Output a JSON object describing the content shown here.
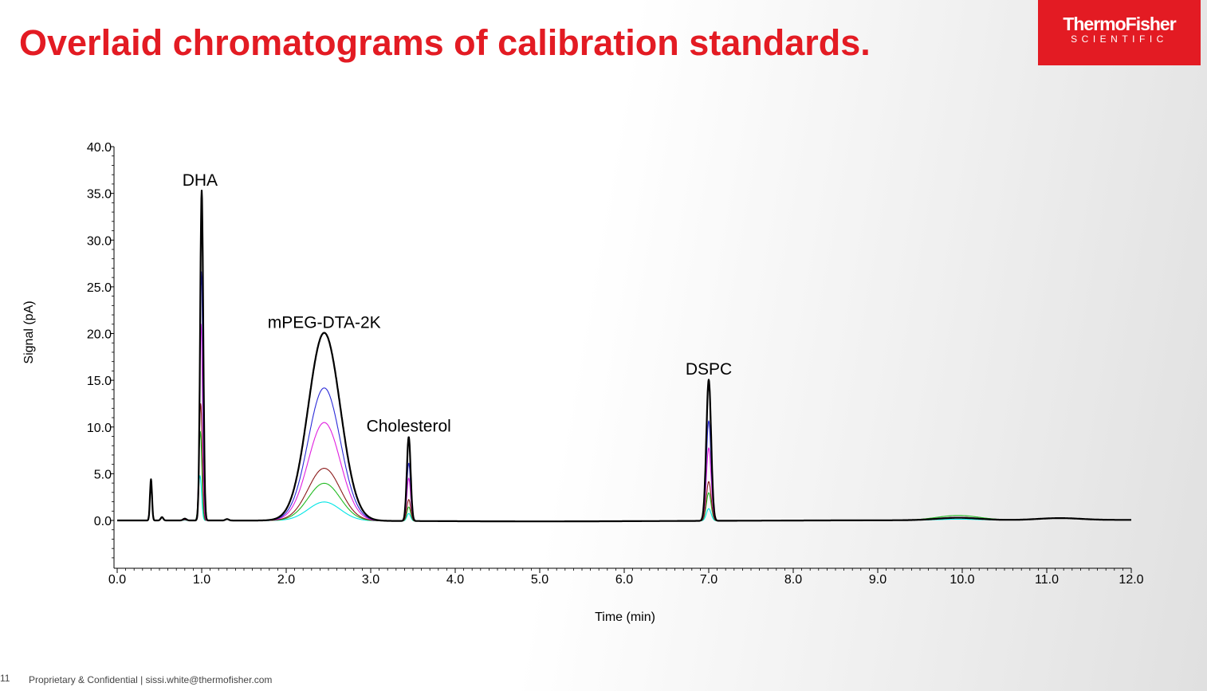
{
  "slide": {
    "title": "Overlaid chromatograms of calibration standards.",
    "page_number": "11",
    "footer": "Proprietary & Confidential |  sissi.white@thermofisher.com",
    "title_color": "#e31b23"
  },
  "logo": {
    "line1": "ThermoFisher",
    "line2": "SCIENTIFIC",
    "color": "#e31b23"
  },
  "chart_data": {
    "type": "line",
    "xlabel": "Time (min)",
    "ylabel": "Signal (pA)",
    "xlim": [
      0,
      12
    ],
    "ylim": [
      -5,
      40
    ],
    "x_ticks": [
      "0.0",
      "1.0",
      "2.0",
      "3.0",
      "4.0",
      "5.0",
      "6.0",
      "7.0",
      "8.0",
      "9.0",
      "10.0",
      "11.0",
      "12.0"
    ],
    "y_ticks": [
      "0.0",
      "5.0",
      "10.0",
      "15.0",
      "20.0",
      "25.0",
      "30.0",
      "35.0",
      "40.0"
    ],
    "annotations": [
      {
        "text": "DHA",
        "x": 0.98,
        "y": 35.3
      },
      {
        "text": "mPEG-DTA-2K",
        "x": 2.45,
        "y": 20.1
      },
      {
        "text": "Cholesterol",
        "x": 3.45,
        "y": 9.0
      },
      {
        "text": "DSPC",
        "x": 7.0,
        "y": 15.1
      }
    ],
    "series": [
      {
        "color": "#00e5e5",
        "width": 1.1,
        "peaks": {
          "dha": 4.8,
          "mpeg": 2.0,
          "chol": 0.8,
          "dspc": 1.3
        },
        "drift": 0.1
      },
      {
        "color": "#22bb22",
        "width": 1.1,
        "peaks": {
          "dha": 9.5,
          "mpeg": 4.0,
          "chol": 1.5,
          "dspc": 3.0
        },
        "drift": 0.5
      },
      {
        "color": "#8b1a1a",
        "width": 1.1,
        "peaks": {
          "dha": 12.5,
          "mpeg": 5.6,
          "chol": 2.3,
          "dspc": 4.2
        },
        "drift": 0.3
      },
      {
        "color": "#e01fe0",
        "width": 1.1,
        "peaks": {
          "dha": 21.0,
          "mpeg": 10.5,
          "chol": 4.6,
          "dspc": 7.8
        },
        "drift": 0.3
      },
      {
        "color": "#2a2ad8",
        "width": 1.1,
        "peaks": {
          "dha": 26.6,
          "mpeg": 14.2,
          "chol": 6.2,
          "dspc": 10.7
        },
        "drift": 0.25
      },
      {
        "color": "#000000",
        "width": 2.2,
        "peaks": {
          "dha": 35.3,
          "mpeg": 20.1,
          "chol": 9.0,
          "dspc": 15.1
        },
        "drift": 0.25
      }
    ]
  }
}
